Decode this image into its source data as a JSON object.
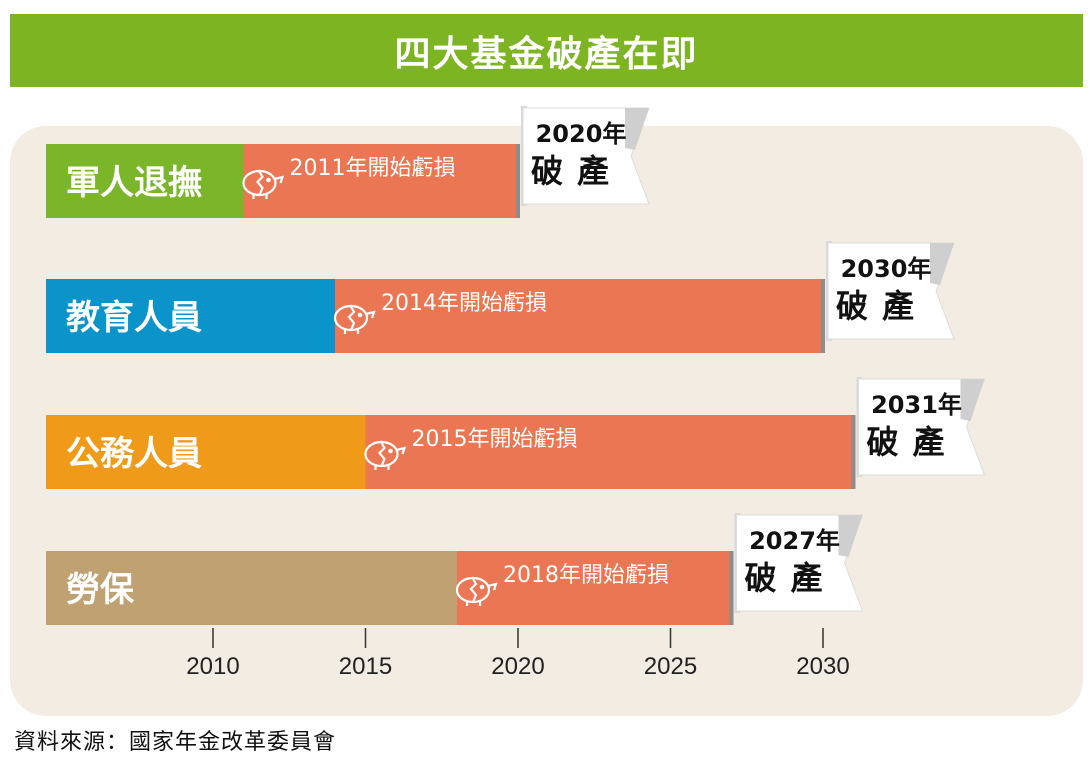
{
  "title": "四大基金破產在即",
  "source": "資料來源：國家年金改革委員會",
  "chart_data": {
    "type": "bar",
    "title": "四大基金破產在即",
    "xlim": [
      2010,
      2030
    ],
    "x_ticks": [
      "2010",
      "2015",
      "2020",
      "2025",
      "2030"
    ],
    "colors": {
      "deficit": "#ea7654",
      "accent": "#7cb521",
      "panel": "#f2ece2"
    },
    "bars": [
      {
        "name": "軍人退撫",
        "color": "#7bb62a",
        "deficit_start": 2011,
        "bankrupt_year": 2020,
        "deficit_label": "2011年開始虧損",
        "flag_year": "2020年",
        "flag_text": "破產"
      },
      {
        "name": "教育人員",
        "color": "#0b94c9",
        "deficit_start": 2014,
        "bankrupt_year": 2030,
        "deficit_label": "2014年開始虧損",
        "flag_year": "2030年",
        "flag_text": "破產"
      },
      {
        "name": "公務人員",
        "color": "#ef9a18",
        "deficit_start": 2015,
        "bankrupt_year": 2031,
        "deficit_label": "2015年開始虧損",
        "flag_year": "2031年",
        "flag_text": "破產"
      },
      {
        "name": "勞保",
        "color": "#c0a272",
        "deficit_start": 2018,
        "bankrupt_year": 2027,
        "deficit_label": "2018年開始虧損",
        "flag_year": "2027年",
        "flag_text": "破產"
      }
    ]
  }
}
